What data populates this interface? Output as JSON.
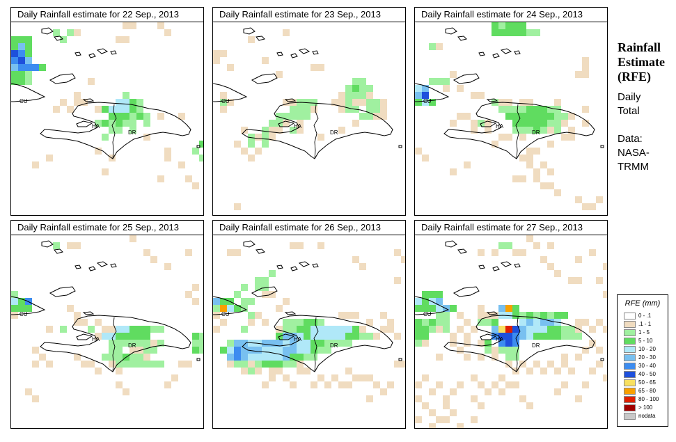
{
  "panels": [
    {
      "title": "Daily Rainfall estimate for  22 Sep., 2013",
      "labels": {
        "cu": "CU",
        "ha": "HA",
        "dr": "DR"
      }
    },
    {
      "title": "Daily Rainfall estimate for  23 Sep., 2013",
      "labels": {
        "cu": "CU",
        "ha": "HA",
        "dr": "DR"
      }
    },
    {
      "title": "Daily Rainfall estimate for  24 Sep., 2013",
      "labels": {
        "cu": "CU",
        "ha": "HA",
        "dr": "DR"
      }
    },
    {
      "title": "Daily Rainfall estimate for  25 Sep., 2013",
      "labels": {
        "cu": "CU",
        "ha": "HA",
        "dr": "DR"
      }
    },
    {
      "title": "Daily Rainfall estimate for  26 Sep., 2013",
      "labels": {
        "cu": "CU",
        "ha": "HA",
        "dr": "DR"
      }
    },
    {
      "title": "Daily Rainfall estimate for  27 Sep., 2013",
      "labels": {
        "cu": "CU",
        "ha": "HA",
        "dr": "DR"
      }
    }
  ],
  "sidebar": {
    "title_line1": "Rainfall",
    "title_line2": "Estimate",
    "title_line3": "(RFE)",
    "daily_line1": "Daily",
    "daily_line2": "Total",
    "data_line1": "Data:",
    "data_line2": "NASA-",
    "data_line3": "TRMM"
  },
  "legend": {
    "title": "RFE (mm)",
    "items": [
      {
        "label": "0 - .1",
        "color": "#ffffff"
      },
      {
        "label": ".1 - 1",
        "color": "#f0dcc0"
      },
      {
        "label": "1 - 5",
        "color": "#a0f0a0"
      },
      {
        "label": "5 - 10",
        "color": "#60dc60"
      },
      {
        "label": "10 - 20",
        "color": "#b0e8f8"
      },
      {
        "label": "20 - 30",
        "color": "#78c0f0"
      },
      {
        "label": "30 - 40",
        "color": "#3c8cf0"
      },
      {
        "label": "40 - 50",
        "color": "#1e50dc"
      },
      {
        "label": "50 - 65",
        "color": "#f8e060"
      },
      {
        "label": "65 - 80",
        "color": "#f8a000"
      },
      {
        "label": "80 - 100",
        "color": "#e02000"
      },
      {
        "label": "> 100",
        "color": "#a00000"
      },
      {
        "label": "nodata",
        "color": "#c8c8c8"
      }
    ]
  }
}
